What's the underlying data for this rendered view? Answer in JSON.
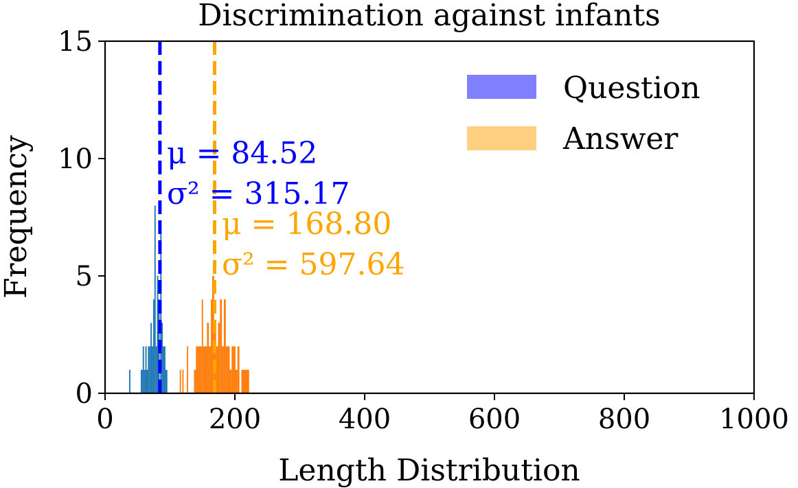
{
  "chart_data": {
    "type": "histogram",
    "title": "Discrimination against infants",
    "xlabel": "Length Distribution",
    "ylabel": "Frequency",
    "xlim": [
      0,
      1000
    ],
    "ylim": [
      0,
      15
    ],
    "xticks": [
      0,
      200,
      400,
      600,
      800,
      1000
    ],
    "yticks": [
      0,
      5,
      10,
      15
    ],
    "xtick_labels": [
      "0",
      "200",
      "400",
      "600",
      "800",
      "1000"
    ],
    "ytick_labels": [
      "0",
      "5",
      "10",
      "15"
    ],
    "grid": false,
    "legend_position": "top-right",
    "legend": [
      {
        "label": "Question",
        "color": "#8080ff"
      },
      {
        "label": "Answer",
        "color": "#ffd080"
      }
    ],
    "series": [
      {
        "name": "Question",
        "color": "#1f77b4",
        "mean_color": "#0000ff",
        "mean": 84.52,
        "mean_label": "μ = 84.52",
        "variance_label": "σ² = 315.17",
        "bars": [
          {
            "x0": 37,
            "x1": 39,
            "y": 1
          },
          {
            "x0": 55,
            "x1": 58,
            "y": 1
          },
          {
            "x0": 58,
            "x1": 60,
            "y": 2
          },
          {
            "x0": 60,
            "x1": 62,
            "y": 1
          },
          {
            "x0": 62,
            "x1": 64,
            "y": 2
          },
          {
            "x0": 64,
            "x1": 66,
            "y": 1
          },
          {
            "x0": 66,
            "x1": 68,
            "y": 2
          },
          {
            "x0": 68,
            "x1": 70,
            "y": 2
          },
          {
            "x0": 70,
            "x1": 72,
            "y": 3
          },
          {
            "x0": 72,
            "x1": 74,
            "y": 2
          },
          {
            "x0": 74,
            "x1": 76,
            "y": 4
          },
          {
            "x0": 76,
            "x1": 78,
            "y": 8
          },
          {
            "x0": 78,
            "x1": 80,
            "y": 2
          },
          {
            "x0": 80,
            "x1": 82,
            "y": 5
          },
          {
            "x0": 82,
            "x1": 84,
            "y": 4
          },
          {
            "x0": 85,
            "x1": 87,
            "y": 7
          },
          {
            "x0": 87,
            "x1": 89,
            "y": 3
          },
          {
            "x0": 89,
            "x1": 91,
            "y": 2
          },
          {
            "x0": 91,
            "x1": 93,
            "y": 2
          },
          {
            "x0": 93,
            "x1": 96,
            "y": 1
          }
        ]
      },
      {
        "name": "Answer",
        "color": "#ff7f0e",
        "mean_color": "#ffa500",
        "mean": 168.8,
        "mean_label": "μ = 168.80",
        "variance_label": "σ² = 597.64",
        "bars": [
          {
            "x0": 115,
            "x1": 117,
            "y": 1
          },
          {
            "x0": 119,
            "x1": 121,
            "y": 1
          },
          {
            "x0": 126,
            "x1": 128,
            "y": 2
          },
          {
            "x0": 137,
            "x1": 140,
            "y": 1
          },
          {
            "x0": 140,
            "x1": 143,
            "y": 2
          },
          {
            "x0": 143,
            "x1": 146,
            "y": 2
          },
          {
            "x0": 146,
            "x1": 149,
            "y": 2
          },
          {
            "x0": 149,
            "x1": 151,
            "y": 4
          },
          {
            "x0": 151,
            "x1": 154,
            "y": 2
          },
          {
            "x0": 154,
            "x1": 157,
            "y": 2
          },
          {
            "x0": 157,
            "x1": 160,
            "y": 3
          },
          {
            "x0": 160,
            "x1": 163,
            "y": 2
          },
          {
            "x0": 163,
            "x1": 165,
            "y": 4
          },
          {
            "x0": 165,
            "x1": 168,
            "y": 5
          },
          {
            "x0": 168,
            "x1": 171,
            "y": 3
          },
          {
            "x0": 171,
            "x1": 174,
            "y": 2
          },
          {
            "x0": 174,
            "x1": 177,
            "y": 3
          },
          {
            "x0": 177,
            "x1": 180,
            "y": 4
          },
          {
            "x0": 180,
            "x1": 183,
            "y": 2
          },
          {
            "x0": 183,
            "x1": 186,
            "y": 4
          },
          {
            "x0": 186,
            "x1": 189,
            "y": 2
          },
          {
            "x0": 189,
            "x1": 192,
            "y": 2
          },
          {
            "x0": 192,
            "x1": 195,
            "y": 1
          },
          {
            "x0": 195,
            "x1": 198,
            "y": 2
          },
          {
            "x0": 198,
            "x1": 201,
            "y": 2
          },
          {
            "x0": 201,
            "x1": 204,
            "y": 1
          },
          {
            "x0": 204,
            "x1": 207,
            "y": 2
          },
          {
            "x0": 210,
            "x1": 222,
            "y": 1
          }
        ]
      }
    ]
  }
}
